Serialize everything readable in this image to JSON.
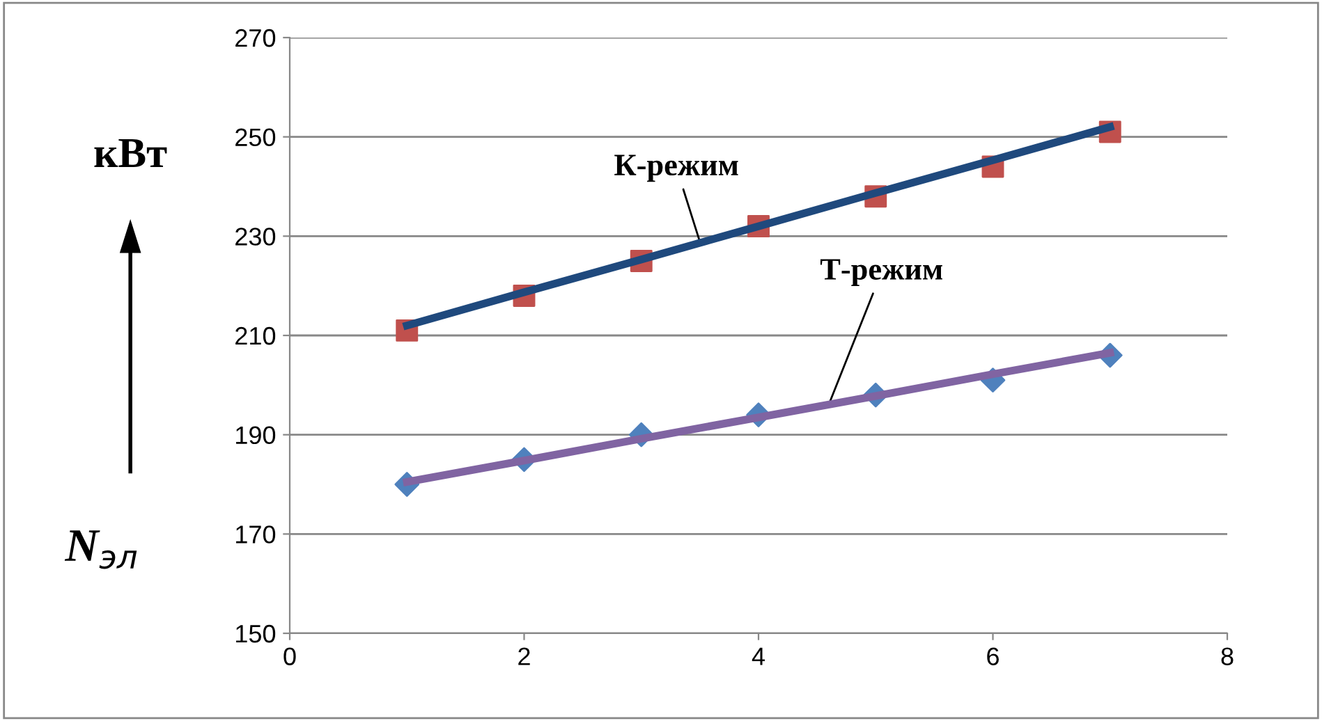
{
  "chart_data": {
    "type": "scatter",
    "ylabel": "N$_{эл}$",
    "x": [
      1,
      2,
      3,
      4,
      5,
      6,
      7
    ],
    "series": [
      {
        "color": "#c0504d",
        "marker": "square",
        "values": [
          211,
          218,
          225,
          232,
          238,
          244,
          251
        ]
      },
      {
        "color": "#4f81bd",
        "marker": "diamond",
        "values": [
          180,
          185,
          190,
          194,
          198,
          201,
          206
        ]
      },
      {
        "type": "line",
        "name": "К-режим",
        "color": "#1f497d",
        "values": [
          212,
          218.7,
          225.3,
          232,
          238.7,
          245.3,
          252
        ],
        "marker": "none"
      },
      {
        "type": "line",
        "name": "Т-режим",
        "color": "#8064a2",
        "values": [
          180.5,
          184.8,
          189.2,
          193.5,
          197.8,
          202.2,
          206.5
        ],
        "marker": "none"
      }
    ],
    "annotations": [
      "кВт"
    ],
    "xlim": [
      0,
      8
    ],
    "xticks": [
      0,
      2,
      4,
      6,
      8
    ],
    "ylim": [
      150,
      270
    ],
    "yticks": [
      150,
      170,
      190,
      210,
      230,
      250,
      270
    ],
    "grid": "y",
    "legend": false
  }
}
